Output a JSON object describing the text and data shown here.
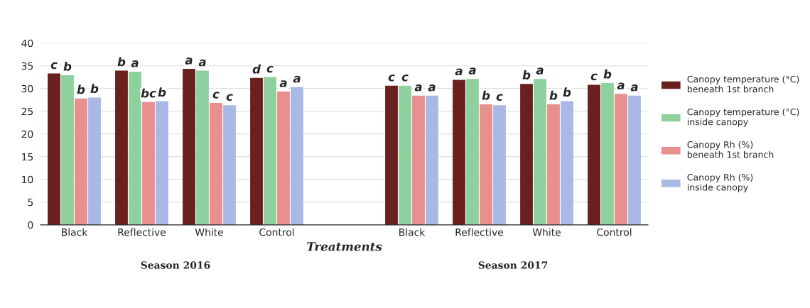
{
  "chart_data": {
    "type": "bar",
    "xlabel": "Treatments",
    "categories": [
      "Black",
      "Reflective",
      "White",
      "Control",
      null,
      "Black",
      "Reflective",
      "White",
      "Control"
    ],
    "series": [
      {
        "name": "Canopy temperature (°C)\nbeneath 1st branch",
        "color": "#6b1f1f",
        "values": [
          33.2,
          33.8,
          34.2,
          32.2,
          null,
          30.5,
          31.8,
          30.9,
          30.7
        ],
        "value_labels": [
          "c",
          "b",
          "a",
          "d",
          null,
          "c",
          "a",
          "b",
          "c"
        ]
      },
      {
        "name": "Canopy temperature (°C)\ninside canopy",
        "color": "#8fd19e",
        "values": [
          32.8,
          33.6,
          33.8,
          32.4,
          null,
          30.5,
          32.0,
          32.0,
          31.1
        ],
        "value_labels": [
          "b",
          "a",
          "a",
          "c",
          null,
          "c",
          "a",
          "a",
          "b"
        ]
      },
      {
        "name": "Canopy Rh (%)\nbeneath 1st branch",
        "color": "#e8908e",
        "values": [
          27.7,
          26.9,
          26.7,
          29.2,
          null,
          28.3,
          26.4,
          26.4,
          28.7
        ],
        "value_labels": [
          "b",
          "bc",
          "c",
          "a",
          null,
          "a",
          "b",
          "b",
          "a"
        ]
      },
      {
        "name": "Canopy Rh (%)\ninside canopy",
        "color": "#aab8e6",
        "values": [
          27.9,
          27.1,
          26.2,
          30.2,
          null,
          28.3,
          26.2,
          27.1,
          28.3
        ],
        "value_labels": [
          "b",
          "b",
          "c",
          "a",
          null,
          "a",
          "c",
          "b",
          "a"
        ]
      }
    ],
    "ylim": [
      0,
      40
    ],
    "yticks": [
      0,
      5,
      10,
      15,
      20,
      25,
      30,
      35,
      40
    ],
    "grid": "y",
    "legend": "right",
    "annotations": [
      "Season 2016",
      "Season 2017"
    ]
  }
}
